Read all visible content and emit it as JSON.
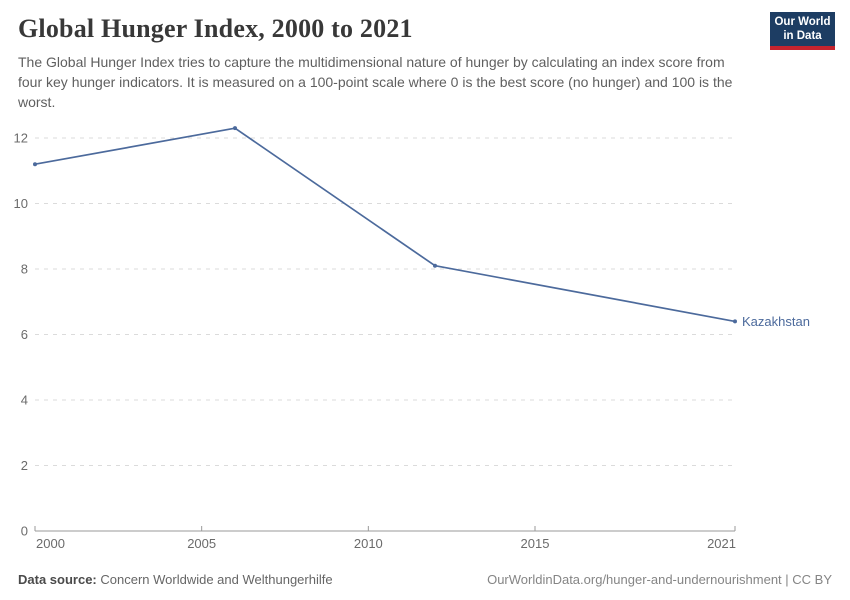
{
  "header": {
    "title": "Global Hunger Index, 2000 to 2021",
    "subtitle": "The Global Hunger Index tries to capture the multidimensional nature of hunger by calculating an index score from four key hunger indicators. It is measured on a 100-point scale where 0 is the best score (no hunger) and 100 is the worst."
  },
  "logo": {
    "line1": "Our World",
    "line2": "in Data",
    "bg_color": "#1d3d63",
    "accent_color": "#c5232d"
  },
  "chart_data": {
    "type": "line",
    "title": "Global Hunger Index, 2000 to 2021",
    "xlabel": "",
    "ylabel": "",
    "x_range": [
      2000,
      2021
    ],
    "y_range": [
      0,
      12
    ],
    "x_ticks": [
      "2000",
      "2005",
      "2010",
      "2015",
      "2021"
    ],
    "x_tick_values": [
      2000,
      2005,
      2010,
      2015,
      2021
    ],
    "y_ticks": [
      "0",
      "2",
      "4",
      "6",
      "8",
      "10",
      "12"
    ],
    "y_tick_values": [
      0,
      2,
      4,
      6,
      8,
      10,
      12
    ],
    "grid": "horizontal-dashed",
    "legend_position": "end-of-line-label",
    "series": [
      {
        "name": "Kazakhstan",
        "color": "#4C6A9C",
        "x": [
          2000,
          2006,
          2012,
          2021
        ],
        "values": [
          11.2,
          12.3,
          8.1,
          6.4
        ]
      }
    ]
  },
  "footer": {
    "source_label": "Data source:",
    "source_value": "Concern Worldwide and Welthungerhilfe",
    "credit": "OurWorldinData.org/hunger-and-undernourishment | CC BY"
  },
  "colors": {
    "grid": "#dbdbdb",
    "axis": "#9a9a9a",
    "tick_label": "#6b6b6b"
  }
}
